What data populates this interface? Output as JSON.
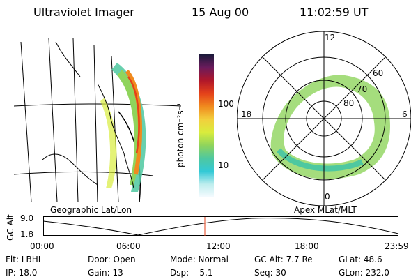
{
  "header": {
    "instrument": "Ultraviolet Imager",
    "date": "15 Aug 00",
    "time": "11:02:59 UT"
  },
  "colorbar": {
    "unit_label": "photon cm⁻²s⁻¹",
    "ticks": [
      "100",
      "10"
    ],
    "colors": [
      "#f7fbff",
      "#bfeeee",
      "#33c9d6",
      "#4ec8a0",
      "#8fd45c",
      "#d9ec3d",
      "#f2cf3d",
      "#f08a1e",
      "#e4411a",
      "#b0172a",
      "#6a1b5c",
      "#1a1a3a"
    ]
  },
  "polar": {
    "mlt_labels": {
      "top": "12",
      "left": "18",
      "right": "6",
      "bottom": "0"
    },
    "lat_labels": [
      "60",
      "70",
      "80"
    ]
  },
  "captions": {
    "left": "Geographic Lat/Lon",
    "right": "Apex MLat/MLT"
  },
  "altitude_plot": {
    "ylabel": "GC Alt",
    "y_ticks": [
      "9.0",
      "1.8"
    ],
    "x_ticks": [
      "00:00",
      "06:00",
      "12:00",
      "18:00",
      "23:59"
    ],
    "current_time_marker": "11:02:59"
  },
  "footer": {
    "row1": {
      "flt": "Flt: LBHL",
      "door": "Door: Open",
      "mode": "Mode: Normal",
      "gcalt": "GC Alt: 7.7 Re",
      "glat": "GLat: 48.6"
    },
    "row2": {
      "ip": "IP: 18.0",
      "gain": "Gain: 13",
      "dsp": "Dsp:    5.1",
      "seq": "Seq: 30",
      "glon": "GLon: 232.0"
    }
  }
}
